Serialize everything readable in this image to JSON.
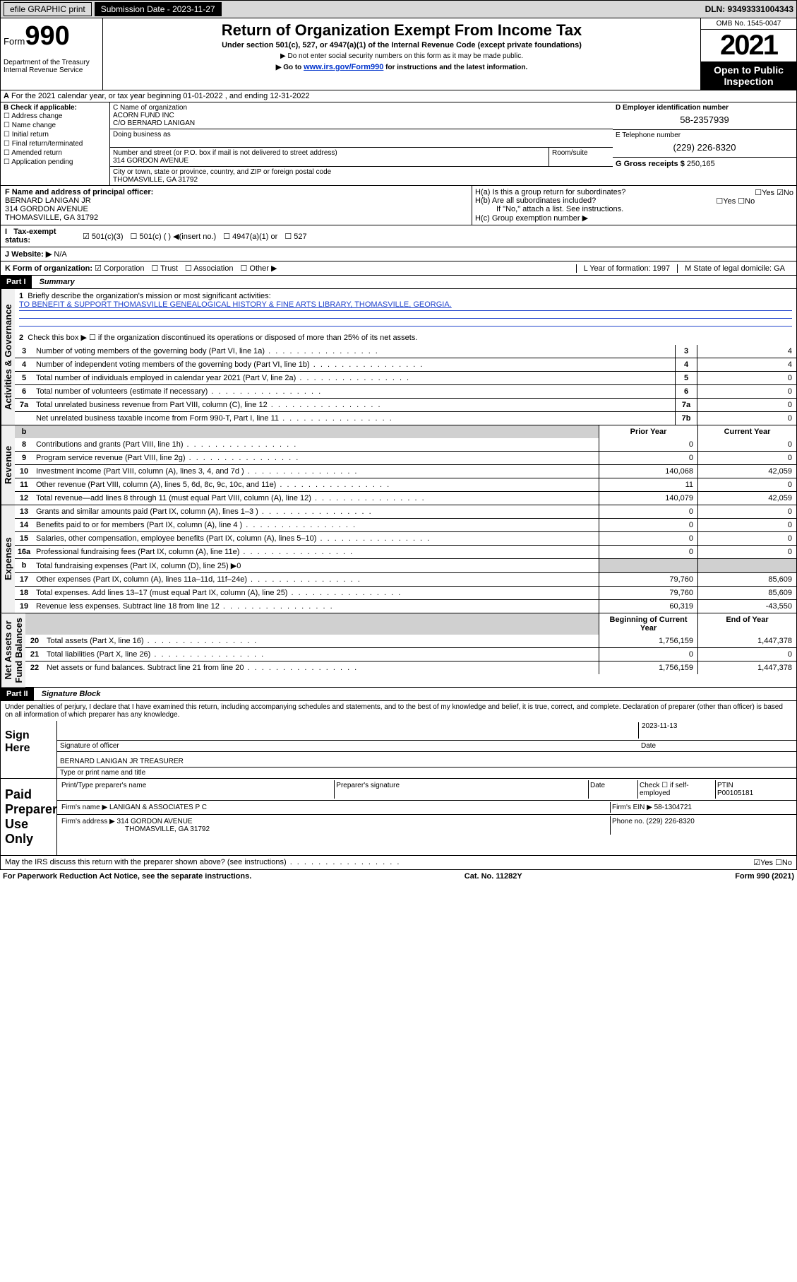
{
  "topbar": {
    "efile": "efile GRAPHIC print",
    "submission_label": "Submission Date - 2023-11-27",
    "dln": "DLN: 93493331004343"
  },
  "header": {
    "form_prefix": "Form",
    "form_number": "990",
    "title": "Return of Organization Exempt From Income Tax",
    "subtitle": "Under section 501(c), 527, or 4947(a)(1) of the Internal Revenue Code (except private foundations)",
    "note1": "▶ Do not enter social security numbers on this form as it may be made public.",
    "note2_prefix": "▶ Go to ",
    "note2_link": "www.irs.gov/Form990",
    "note2_suffix": " for instructions and the latest information.",
    "dept": "Department of the Treasury\nInternal Revenue Service",
    "omb": "OMB No. 1545-0047",
    "year": "2021",
    "open_public": "Open to Public Inspection"
  },
  "section_a": {
    "text": "For the 2021 calendar year, or tax year beginning 01-01-2022   , and ending 12-31-2022"
  },
  "section_b": {
    "label": "B Check if applicable:",
    "items": [
      "Address change",
      "Name change",
      "Initial return",
      "Final return/terminated",
      "Amended return",
      "Application pending"
    ]
  },
  "section_c": {
    "label": "C Name of organization",
    "name1": "ACORN FUND INC",
    "name2": "C/O BERNARD LANIGAN",
    "dba_label": "Doing business as",
    "addr_label": "Number and street (or P.O. box if mail is not delivered to street address)",
    "room_label": "Room/suite",
    "addr": "314 GORDON AVENUE",
    "city_label": "City or town, state or province, country, and ZIP or foreign postal code",
    "city": "THOMASVILLE, GA  31792"
  },
  "section_d": {
    "label": "D Employer identification number",
    "value": "58-2357939"
  },
  "section_e": {
    "label": "E Telephone number",
    "value": "(229) 226-8320"
  },
  "section_g": {
    "label": "G Gross receipts $",
    "value": "250,165"
  },
  "section_f": {
    "label": "F  Name and address of principal officer:",
    "name": "BERNARD LANIGAN JR",
    "addr": "314 GORDON AVENUE",
    "city": "THOMASVILLE, GA  31792"
  },
  "section_h": {
    "ha": "H(a)  Is this a group return for subordinates?",
    "hb": "H(b)  Are all subordinates included?",
    "hb_note": "If \"No,\" attach a list. See instructions.",
    "hc": "H(c)  Group exemption number ▶"
  },
  "section_i": {
    "label": "Tax-exempt status:",
    "opts": [
      "501(c)(3)",
      "501(c) (  ) ◀(insert no.)",
      "4947(a)(1) or",
      "527"
    ]
  },
  "section_j": {
    "label": "J   Website: ▶",
    "value": "N/A"
  },
  "section_k": {
    "label": "K Form of organization:",
    "opts": [
      "Corporation",
      "Trust",
      "Association",
      "Other ▶"
    ]
  },
  "section_l": {
    "label": "L Year of formation: 1997"
  },
  "section_m": {
    "label": "M State of legal domicile: GA"
  },
  "part1": {
    "header": "Part I",
    "title": "Summary",
    "q1_label": "1",
    "q1_text": "Briefly describe the organization's mission or most significant activities:",
    "q1_mission": "TO BENEFIT & SUPPORT THOMASVILLE GENEALOGICAL HISTORY & FINE ARTS LIBRARY, THOMASVILLE, GEORGIA.",
    "q2_label": "2",
    "q2_text": "Check this box ▶ ☐  if the organization discontinued its operations or disposed of more than 25% of its net assets.",
    "prior": "Prior Year",
    "current": "Current Year",
    "begin": "Beginning of Current Year",
    "end": "End of Year",
    "fund_note": "Total fundraising expenses (Part IX, column (D), line 25) ▶0"
  },
  "summary_top": [
    {
      "n": "3",
      "desc": "Number of voting members of the governing body (Part VI, line 1a)",
      "key": "3",
      "val": "4"
    },
    {
      "n": "4",
      "desc": "Number of independent voting members of the governing body (Part VI, line 1b)",
      "key": "4",
      "val": "4"
    },
    {
      "n": "5",
      "desc": "Total number of individuals employed in calendar year 2021 (Part V, line 2a)",
      "key": "5",
      "val": "0"
    },
    {
      "n": "6",
      "desc": "Total number of volunteers (estimate if necessary)",
      "key": "6",
      "val": "0"
    },
    {
      "n": "7a",
      "desc": "Total unrelated business revenue from Part VIII, column (C), line 12",
      "key": "7a",
      "val": "0"
    },
    {
      "n": "",
      "desc": "Net unrelated business taxable income from Form 990-T, Part I, line 11",
      "key": "7b",
      "val": "0"
    }
  ],
  "revenue": [
    {
      "n": "8",
      "desc": "Contributions and grants (Part VIII, line 1h)",
      "p": "0",
      "c": "0"
    },
    {
      "n": "9",
      "desc": "Program service revenue (Part VIII, line 2g)",
      "p": "0",
      "c": "0"
    },
    {
      "n": "10",
      "desc": "Investment income (Part VIII, column (A), lines 3, 4, and 7d )",
      "p": "140,068",
      "c": "42,059"
    },
    {
      "n": "11",
      "desc": "Other revenue (Part VIII, column (A), lines 5, 6d, 8c, 9c, 10c, and 11e)",
      "p": "11",
      "c": "0"
    },
    {
      "n": "12",
      "desc": "Total revenue—add lines 8 through 11 (must equal Part VIII, column (A), line 12)",
      "p": "140,079",
      "c": "42,059"
    }
  ],
  "expenses": [
    {
      "n": "13",
      "desc": "Grants and similar amounts paid (Part IX, column (A), lines 1–3 )",
      "p": "0",
      "c": "0"
    },
    {
      "n": "14",
      "desc": "Benefits paid to or for members (Part IX, column (A), line 4 )",
      "p": "0",
      "c": "0"
    },
    {
      "n": "15",
      "desc": "Salaries, other compensation, employee benefits (Part IX, column (A), lines 5–10)",
      "p": "0",
      "c": "0"
    },
    {
      "n": "16a",
      "desc": "Professional fundraising fees (Part IX, column (A), line 11e)",
      "p": "0",
      "c": "0"
    },
    {
      "n": "b",
      "desc": "",
      "p": "",
      "c": "",
      "note": true
    },
    {
      "n": "17",
      "desc": "Other expenses (Part IX, column (A), lines 11a–11d, 11f–24e)",
      "p": "79,760",
      "c": "85,609"
    },
    {
      "n": "18",
      "desc": "Total expenses. Add lines 13–17 (must equal Part IX, column (A), line 25)",
      "p": "79,760",
      "c": "85,609"
    },
    {
      "n": "19",
      "desc": "Revenue less expenses. Subtract line 18 from line 12",
      "p": "60,319",
      "c": "-43,550"
    }
  ],
  "netassets": [
    {
      "n": "20",
      "desc": "Total assets (Part X, line 16)",
      "p": "1,756,159",
      "c": "1,447,378"
    },
    {
      "n": "21",
      "desc": "Total liabilities (Part X, line 26)",
      "p": "0",
      "c": "0"
    },
    {
      "n": "22",
      "desc": "Net assets or fund balances. Subtract line 21 from line 20",
      "p": "1,756,159",
      "c": "1,447,378"
    }
  ],
  "part2": {
    "header": "Part II",
    "title": "Signature Block",
    "penalty": "Under penalties of perjury, I declare that I have examined this return, including accompanying schedules and statements, and to the best of my knowledge and belief, it is true, correct, and complete. Declaration of preparer (other than officer) is based on all information of which preparer has any knowledge."
  },
  "sign": {
    "label": "Sign Here",
    "sig_officer": "Signature of officer",
    "date": "2023-11-13",
    "date_label": "Date",
    "name": "BERNARD LANIGAN JR TREASURER",
    "name_label": "Type or print name and title"
  },
  "paid": {
    "label": "Paid Preparer Use Only",
    "col1": "Print/Type preparer's name",
    "col2": "Preparer's signature",
    "col3": "Date",
    "col4_check": "Check ☐ if self-employed",
    "col5_label": "PTIN",
    "col5_val": "P00105181",
    "firm_name_label": "Firm's name    ▶",
    "firm_name": "LANIGAN & ASSOCIATES P C",
    "firm_ein_label": "Firm's EIN ▶",
    "firm_ein": "58-1304721",
    "firm_addr_label": "Firm's address ▶",
    "firm_addr": "314 GORDON AVENUE",
    "firm_city": "THOMASVILLE, GA  31792",
    "phone_label": "Phone no.",
    "phone": "(229) 226-8320"
  },
  "footer": {
    "may_discuss": "May the IRS discuss this return with the preparer shown above? (see instructions)",
    "yes_no": "☑Yes  ☐No",
    "paperwork": "For Paperwork Reduction Act Notice, see the separate instructions.",
    "cat": "Cat. No. 11282Y",
    "form": "Form 990 (2021)"
  }
}
